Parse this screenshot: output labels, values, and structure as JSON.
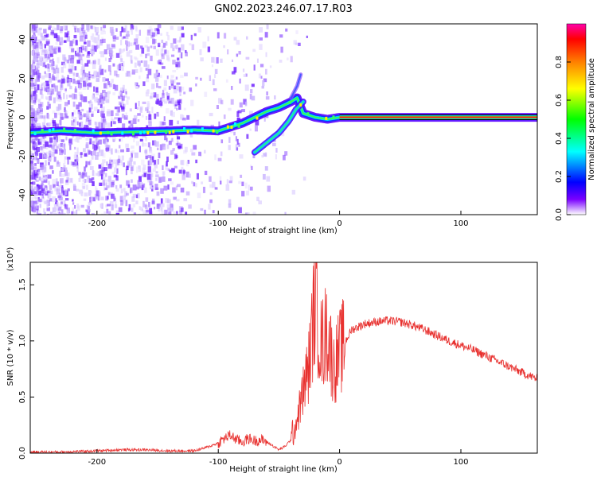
{
  "title": "GN02.2023.246.07.17.R03",
  "chart_data": [
    {
      "type": "heatmap",
      "xlabel": "Height of straight line (km)",
      "ylabel": "Frequency (Hz)",
      "xlim": [
        -255,
        163
      ],
      "ylim": [
        -50,
        48
      ],
      "xticks": [
        -200,
        -100,
        0,
        100
      ],
      "yticks": [
        -40,
        -20,
        0,
        20,
        40
      ],
      "grid": false,
      "colorbar": {
        "label": "Normalized spectral amplitude",
        "range": [
          0.0,
          1.0
        ],
        "ticks": [
          "0.0",
          "0.2",
          "0.4",
          "0.6",
          "0.8"
        ],
        "colors": [
          "#ffffff",
          "#5a00ff",
          "#0000ff",
          "#00ffff",
          "#00ff00",
          "#ffff00",
          "#ff8000",
          "#ff0000",
          "#ff00aa"
        ]
      },
      "ridge_main": {
        "x": [
          -255,
          -230,
          -200,
          -170,
          -140,
          -120,
          -100,
          -90,
          -80,
          -70,
          -60,
          -50,
          -40,
          -35,
          -30,
          -20,
          -10,
          0,
          10,
          163
        ],
        "y": [
          -8,
          -7,
          -8,
          -7.5,
          -7,
          -6.5,
          -7,
          -5,
          -3,
          0,
          3,
          5,
          8,
          10,
          2,
          0,
          -1,
          0,
          0,
          0
        ]
      },
      "ridge_branch": {
        "x": [
          -70,
          -60,
          -50,
          -42,
          -36,
          -30
        ],
        "y": [
          -18,
          -13,
          -8,
          -2,
          4,
          8
        ]
      },
      "ridge_flare": {
        "x": [
          -40,
          -35,
          -32
        ],
        "y": [
          10,
          16,
          22
        ]
      },
      "constant_band": {
        "x": [
          0,
          163
        ],
        "y": 0
      }
    },
    {
      "type": "line",
      "xlabel": "Height of straight line (km)",
      "ylabel": "SNR (10 * v/v)",
      "y_multiplier": "(x10⁴)",
      "xlim": [
        -255,
        163
      ],
      "ylim": [
        0.0,
        1.7
      ],
      "xticks": [
        -200,
        -100,
        0,
        100
      ],
      "yticks": [
        "0.0",
        "0.5",
        "1.0",
        "1.5"
      ],
      "color": "#e8312f",
      "series": [
        {
          "x": [
            -255,
            -230,
            -200,
            -180,
            -160,
            -140,
            -120,
            -110,
            -100,
            -95,
            -90,
            -85,
            -80,
            -75,
            -70,
            -65,
            -60,
            -50,
            -45,
            -40,
            -35,
            -30,
            -25,
            -20,
            -15,
            -10,
            -5,
            0,
            10,
            20,
            30,
            40,
            50,
            60,
            70,
            80,
            90,
            100,
            110,
            120,
            130,
            140,
            150,
            163
          ],
          "y": [
            0.01,
            0.01,
            0.02,
            0.03,
            0.03,
            0.02,
            0.02,
            0.05,
            0.09,
            0.13,
            0.16,
            0.12,
            0.1,
            0.13,
            0.11,
            0.12,
            0.1,
            0.03,
            0.06,
            0.12,
            0.3,
            0.55,
            0.8,
            1.4,
            0.95,
            1.1,
            0.75,
            0.9,
            1.1,
            1.15,
            1.17,
            1.18,
            1.17,
            1.14,
            1.1,
            1.05,
            1.0,
            0.96,
            0.92,
            0.87,
            0.82,
            0.77,
            0.72,
            0.66
          ]
        }
      ]
    }
  ]
}
